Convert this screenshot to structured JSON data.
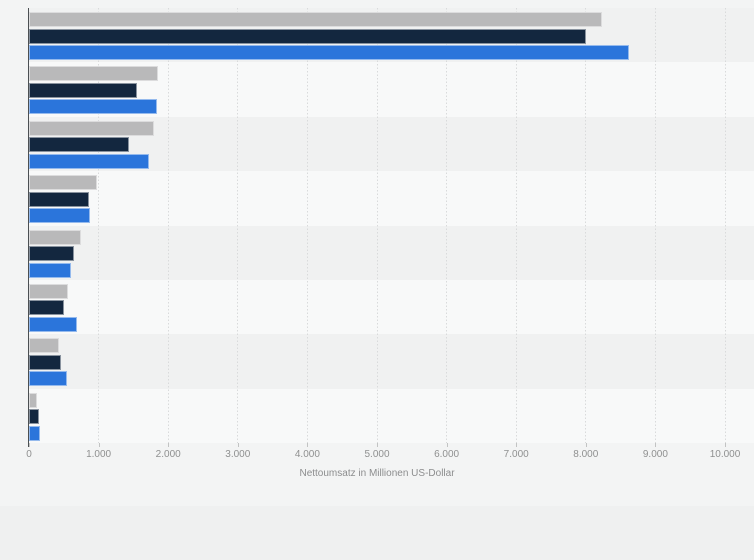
{
  "chart_data": {
    "type": "bar",
    "orientation": "horizontal",
    "title": "",
    "xlabel": "Nettoumsatz in Millionen US-Dollar",
    "ylabel": "",
    "xlim": [
      0,
      10000
    ],
    "x_tick_values": [
      0,
      1000,
      2000,
      3000,
      4000,
      5000,
      6000,
      7000,
      8000,
      9000,
      10000
    ],
    "x_tick_labels": [
      "0",
      "1.000",
      "2.000",
      "3.000",
      "4.000",
      "5.000",
      "6.000",
      "7.000",
      "8.000",
      "9.000",
      "10.000"
    ],
    "grid": "vertical-dotted",
    "legend_position": "none",
    "categories_visible": false,
    "group_count": 8,
    "series": [
      {
        "name": "series-gray",
        "color": "#b9b9ba",
        "values": [
          8230,
          1860,
          1795,
          980,
          740,
          560,
          430,
          120
        ]
      },
      {
        "name": "series-dark-blue",
        "color": "#13273f",
        "values": [
          8000,
          1550,
          1440,
          865,
          645,
          505,
          455,
          150
        ]
      },
      {
        "name": "series-blue",
        "color": "#2b75db",
        "values": [
          8620,
          1840,
          1730,
          880,
          610,
          695,
          550,
          155
        ]
      }
    ]
  },
  "layout_colors": {
    "page_background": "#eff0f0",
    "canvas_background": "#f3f4f4",
    "band_dark": "#f0f1f1",
    "band_light": "#f8f9f9",
    "gridline": "#d9dadb",
    "axis_line": "#4b4f52",
    "tick_label": "#8f9090"
  }
}
